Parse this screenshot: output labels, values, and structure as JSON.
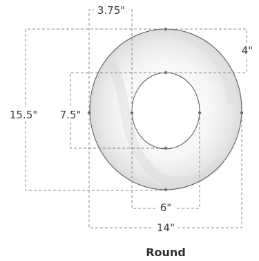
{
  "shape": {
    "name": "Round",
    "dimensions": {
      "outer_width": "14\"",
      "outer_height": "15.5\"",
      "inner_width": "6\"",
      "inner_height": "7.5\"",
      "top_offset": "4\"",
      "side_offset": "3.75\""
    }
  },
  "colors": {
    "outline": "#555555",
    "dash": "#8a8a8a",
    "marker": "#6b6b6b",
    "label": "#3a3a3a"
  }
}
